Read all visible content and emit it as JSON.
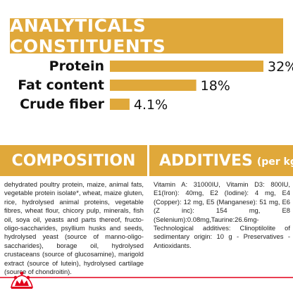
{
  "header": {
    "title": "ANALYTICALS CONSTITUENTS"
  },
  "chart_data": {
    "type": "bar",
    "orientation": "horizontal",
    "categories": [
      "Protein",
      "Fat content",
      "Crude fiber"
    ],
    "values": [
      32,
      18,
      4.1
    ],
    "value_labels": [
      "32%",
      "18%",
      "4.1%"
    ],
    "xlim": [
      0,
      32
    ],
    "grid": false,
    "legend": "none",
    "bar_color": "#e0a83a"
  },
  "composition": {
    "title": "COMPOSITION",
    "text": "dehydrated poultry protein, maize, animal fats, vegetable protein isolate*, wheat, maize gluten, rice, hydrolysed animal proteins, vegetable fibres, wheat flour, chicory pulp, minerals, fish oil, soya oil, yeasts and parts thereof, fructo-oligo-saccharides, psyllium husks and seeds, hydrolysed yeast (source of manno-oligo-saccharides), borage oil, hydrolysed crustaceans (source of glucosamine), marigold extract (source of lutein), hydrolysed cartilage (source of chondroitin)."
  },
  "additives": {
    "title": "ADDITIVES",
    "unit": "(per kg)",
    "text": "Vitamin A: 31000IU, Vitamin D3: 800IU, E1(Iron): 40mg, E2 (Iodine): 4 mg, E4 (Copper): 12 mg, E5 (Manganese): 51 mg, E6 (Z inc): 154 mg, E8 (Selenium):0.08mg,Taurine:26.6mg-Technological additives: Clinoptilolite of sedimentary origin: 10 g - Preservatives -Antioxidants."
  },
  "brand": {
    "logo_icon": "royal-canin-crown-icon",
    "accent_color": "#e2001a",
    "banner_color": "#e0a83a"
  }
}
